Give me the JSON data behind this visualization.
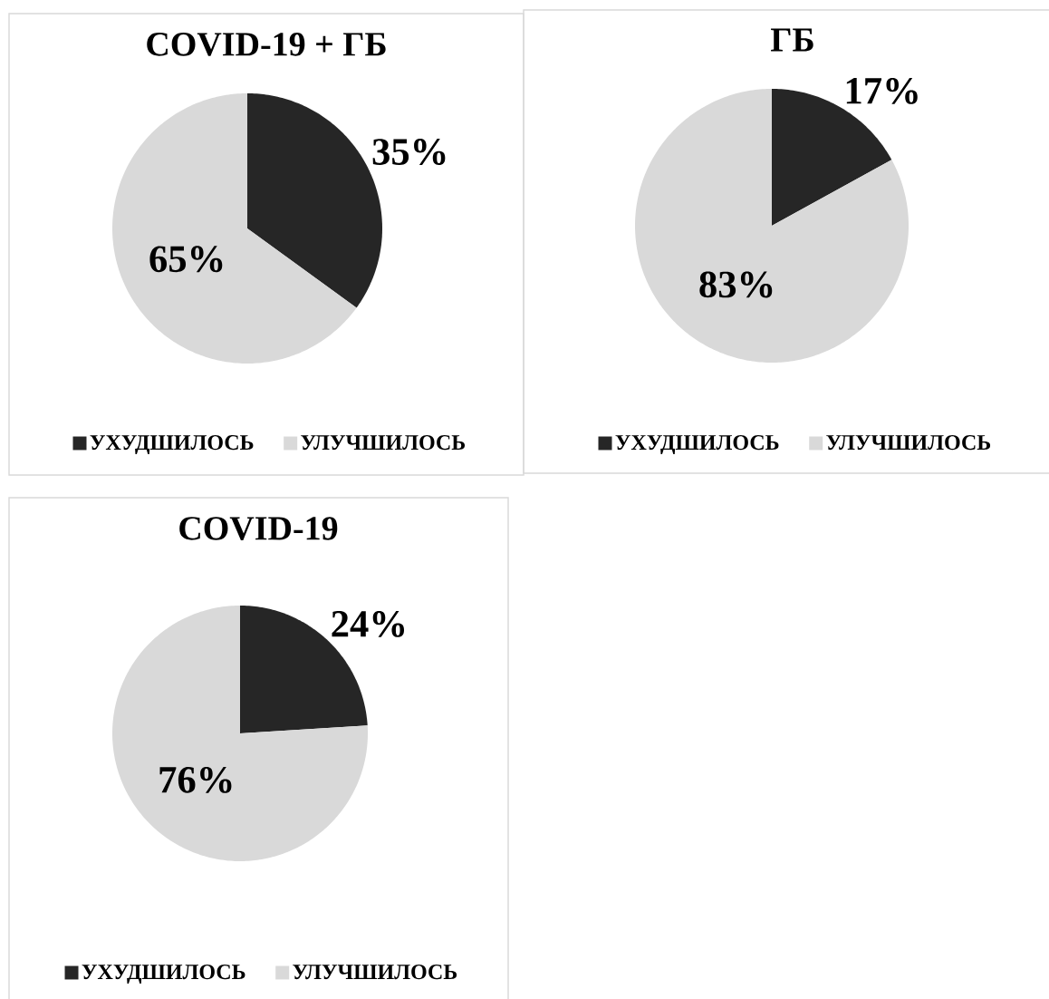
{
  "chart_data": [
    {
      "type": "pie",
      "title": "COVID-19 + ГБ",
      "categories": [
        "УХУДШИЛОСЬ",
        "УЛУЧШИЛОСЬ"
      ],
      "values": [
        35,
        65
      ],
      "colors": [
        "#262626",
        "#d9d9d9"
      ],
      "value_labels": [
        "35%",
        "65%"
      ],
      "legend": "bottom"
    },
    {
      "type": "pie",
      "title": "ГБ",
      "categories": [
        "УХУДШИЛОСЬ",
        "УЛУЧШИЛОСЬ"
      ],
      "values": [
        17,
        83
      ],
      "colors": [
        "#262626",
        "#d9d9d9"
      ],
      "value_labels": [
        "17%",
        "83%"
      ],
      "legend": "bottom"
    },
    {
      "type": "pie",
      "title": "COVID-19",
      "categories": [
        "УХУДШИЛОСЬ",
        "УЛУЧШИЛОСЬ"
      ],
      "values": [
        24,
        76
      ],
      "colors": [
        "#262626",
        "#d9d9d9"
      ],
      "value_labels": [
        "24%",
        "76%"
      ],
      "legend": "bottom"
    }
  ]
}
